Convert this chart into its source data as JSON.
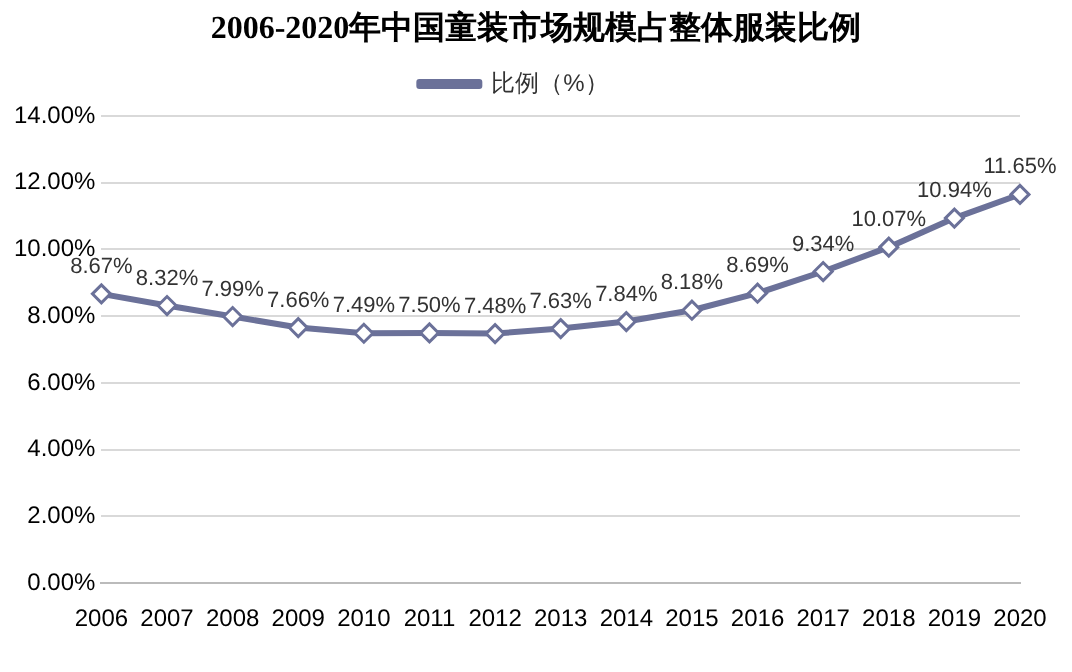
{
  "chart_data": {
    "type": "line",
    "title": "2006-2020年中国童装市场规模占整体服装比例",
    "categories": [
      "2006",
      "2007",
      "2008",
      "2009",
      "2010",
      "2011",
      "2012",
      "2013",
      "2014",
      "2015",
      "2016",
      "2017",
      "2018",
      "2019",
      "2020"
    ],
    "series": [
      {
        "name": "比例（%）",
        "color": "#6b7199",
        "values": [
          8.67,
          8.32,
          7.99,
          7.66,
          7.49,
          7.5,
          7.48,
          7.63,
          7.84,
          8.18,
          8.69,
          9.34,
          10.07,
          10.94,
          11.65
        ],
        "value_labels": [
          "8.67%",
          "8.32%",
          "7.99%",
          "7.66%",
          "7.49%",
          "7.50%",
          "7.48%",
          "7.63%",
          "7.84%",
          "8.18%",
          "8.69%",
          "9.34%",
          "10.07%",
          "10.94%",
          "11.65%"
        ]
      }
    ],
    "ylim": [
      0,
      14
    ],
    "yticks": [
      {
        "value": 0,
        "label": "0.00%"
      },
      {
        "value": 2,
        "label": "2.00%"
      },
      {
        "value": 4,
        "label": "4.00%"
      },
      {
        "value": 6,
        "label": "6.00%"
      },
      {
        "value": 8,
        "label": "8.00%"
      },
      {
        "value": 10,
        "label": "10.00%"
      },
      {
        "value": 12,
        "label": "12.00%"
      },
      {
        "value": 14,
        "label": "14.00%"
      }
    ],
    "grid": "y",
    "legend": "top",
    "marker": "diamond",
    "line_style": "solid"
  }
}
